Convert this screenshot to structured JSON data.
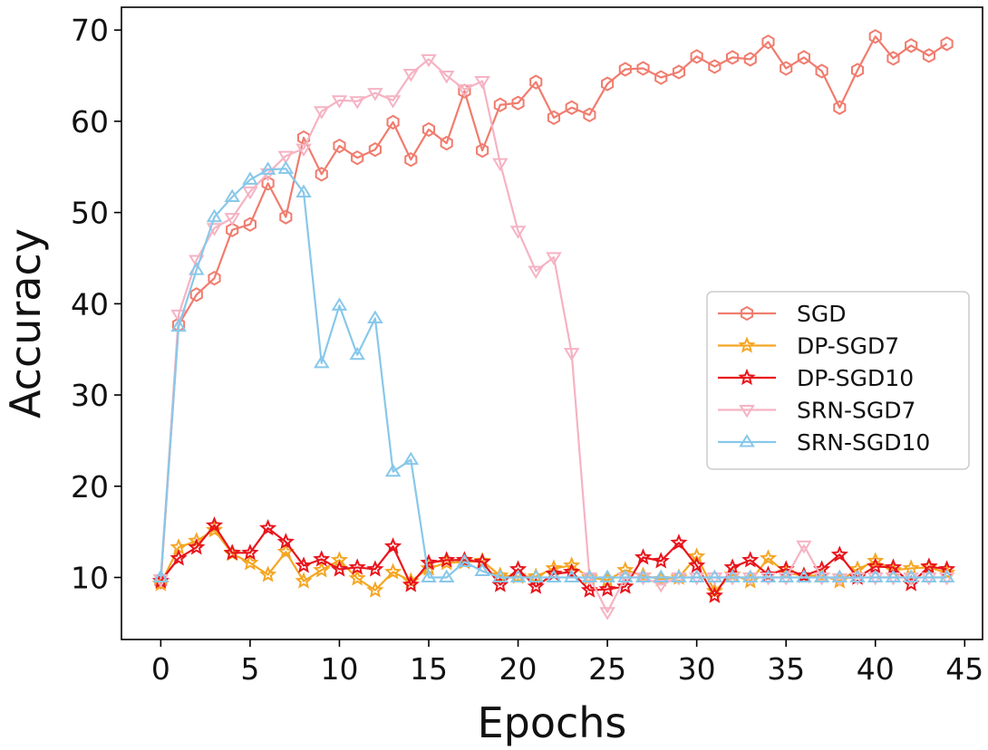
{
  "chart_data": {
    "type": "line",
    "title": "",
    "xlabel": "Epochs",
    "ylabel": "Accuracy",
    "xlim": [
      -2.2,
      46
    ],
    "ylim": [
      3.2,
      72.5
    ],
    "xticks": [
      0,
      5,
      10,
      15,
      20,
      25,
      30,
      35,
      40,
      45
    ],
    "yticks": [
      10,
      20,
      30,
      40,
      50,
      60,
      70
    ],
    "legend_position": "center-right",
    "x": [
      0,
      1,
      2,
      3,
      4,
      5,
      6,
      7,
      8,
      9,
      10,
      11,
      12,
      13,
      14,
      15,
      16,
      17,
      18,
      19,
      20,
      21,
      22,
      23,
      24,
      25,
      26,
      27,
      28,
      29,
      30,
      31,
      32,
      33,
      34,
      35,
      36,
      37,
      38,
      39,
      40,
      41,
      42,
      43,
      44
    ],
    "series": [
      {
        "name": "SGD",
        "color": "#f07c6e",
        "marker": "hexagon",
        "values": [
          9.5,
          37.7,
          41.0,
          42.8,
          48.1,
          48.7,
          53.2,
          49.5,
          58.2,
          54.2,
          57.3,
          56.0,
          56.9,
          59.9,
          55.8,
          59.1,
          57.6,
          63.3,
          56.8,
          61.8,
          62.0,
          64.3,
          60.4,
          61.5,
          60.7,
          64.1,
          65.7,
          65.8,
          64.8,
          65.4,
          67.1,
          66.0,
          67.0,
          66.8,
          68.7,
          65.8,
          67.0,
          65.5,
          61.5,
          65.6,
          69.3,
          66.9,
          68.3,
          67.2,
          68.5
        ]
      },
      {
        "name": "DP-SGD7",
        "color": "#f5a623",
        "marker": "star",
        "values": [
          9.3,
          13.3,
          14.0,
          15.2,
          12.6,
          11.6,
          10.3,
          12.8,
          9.6,
          10.8,
          11.9,
          9.9,
          8.6,
          10.6,
          9.6,
          11.0,
          11.6,
          11.7,
          11.8,
          10.2,
          10.1,
          10.1,
          11.0,
          11.3,
          10.0,
          9.7,
          10.8,
          10.2,
          9.8,
          10.0,
          12.3,
          8.5,
          10.3,
          9.6,
          12.1,
          10.5,
          10.2,
          10.2,
          9.6,
          10.9,
          11.8,
          10.8,
          11.0,
          11.1,
          10.5
        ]
      },
      {
        "name": "DP-SGD10",
        "color": "#e8141c",
        "marker": "star",
        "values": [
          9.6,
          12.1,
          13.3,
          15.7,
          12.7,
          12.7,
          15.4,
          13.9,
          11.3,
          12.0,
          10.9,
          11.1,
          10.9,
          13.4,
          9.2,
          11.6,
          11.9,
          11.9,
          11.7,
          9.2,
          10.9,
          9.0,
          10.4,
          10.6,
          8.6,
          8.7,
          9.0,
          12.2,
          11.8,
          13.8,
          11.3,
          8.0,
          11.1,
          11.9,
          10.3,
          10.9,
          10.2,
          10.9,
          12.5,
          10.0,
          11.2,
          11.1,
          9.3,
          11.2,
          10.9
        ]
      },
      {
        "name": "SRN-SGD7",
        "color": "#f5b3c3",
        "marker": "triangle-down",
        "values": [
          9.8,
          38.8,
          44.8,
          48.3,
          49.4,
          52.3,
          54.3,
          56.2,
          57.0,
          61.1,
          62.3,
          62.2,
          63.1,
          62.3,
          65.2,
          66.8,
          65.0,
          63.5,
          64.4,
          55.4,
          48.0,
          43.6,
          45.1,
          34.6,
          10.0,
          6.2,
          10.0,
          10.0,
          9.2,
          10.0,
          10.0,
          10.0,
          10.0,
          10.0,
          10.0,
          10.0,
          13.5,
          10.0,
          9.9,
          10.0,
          10.0,
          10.0,
          10.0,
          10.0,
          10.0
        ]
      },
      {
        "name": "SRN-SGD10",
        "color": "#88c8ea",
        "marker": "triangle-up",
        "values": [
          10.0,
          37.5,
          43.7,
          49.5,
          51.7,
          53.6,
          54.7,
          54.8,
          52.2,
          33.5,
          39.8,
          34.4,
          38.4,
          21.6,
          22.9,
          10.0,
          10.0,
          11.7,
          10.7,
          10.0,
          10.0,
          10.0,
          10.0,
          10.0,
          10.0,
          10.0,
          10.0,
          10.0,
          10.0,
          10.0,
          10.0,
          10.0,
          10.0,
          10.0,
          10.0,
          10.0,
          10.0,
          10.0,
          10.0,
          10.0,
          10.0,
          10.0,
          10.0,
          10.0,
          10.0
        ]
      }
    ]
  }
}
